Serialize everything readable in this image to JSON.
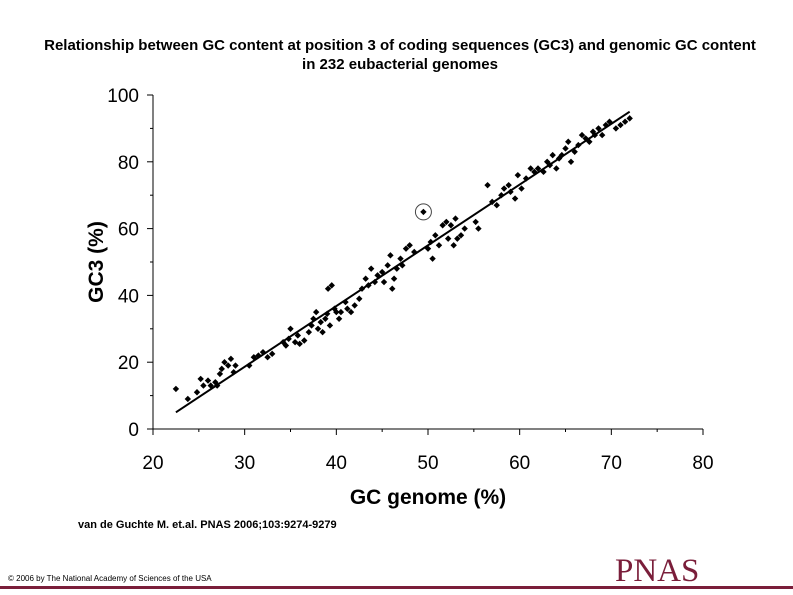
{
  "title": "Relationship between GC content at position 3 of coding sequences (GC3) and genomic GC content in 232 eubacterial genomes",
  "citation": "van de Guchte M. et.al. PNAS 2006;103:9274-9279",
  "copyright": "© 2006 by The National Academy of Sciences of the USA",
  "logo_text": "PNAS",
  "colors": {
    "brand": "#7a1e3a",
    "points": "#000000",
    "line": "#000000"
  },
  "chart_data": {
    "type": "scatter",
    "xlabel": "GC genome (%)",
    "ylabel": "GC3 (%)",
    "xlim": [
      20,
      80
    ],
    "ylim": [
      0,
      100
    ],
    "xticks": [
      20,
      30,
      40,
      50,
      60,
      70,
      80
    ],
    "yticks": [
      0,
      20,
      40,
      60,
      80,
      100
    ],
    "grid": false,
    "regression_line": {
      "x": [
        22.5,
        72
      ],
      "y": [
        5,
        95
      ]
    },
    "highlighted_point": {
      "x": 49.5,
      "y": 65
    },
    "points": [
      [
        22.5,
        12
      ],
      [
        23.8,
        9
      ],
      [
        24.8,
        11
      ],
      [
        25.2,
        15
      ],
      [
        25.5,
        13
      ],
      [
        26,
        14.5
      ],
      [
        26.3,
        13
      ],
      [
        26.8,
        14
      ],
      [
        27,
        13
      ],
      [
        27.3,
        16.5
      ],
      [
        27.5,
        18
      ],
      [
        27.8,
        20
      ],
      [
        28.2,
        19
      ],
      [
        28.5,
        21
      ],
      [
        28.8,
        17
      ],
      [
        29,
        19
      ],
      [
        30.5,
        19
      ],
      [
        31,
        21.5
      ],
      [
        31.5,
        22
      ],
      [
        32,
        23
      ],
      [
        32.5,
        21.5
      ],
      [
        33,
        22.5
      ],
      [
        34.2,
        26
      ],
      [
        34.5,
        25
      ],
      [
        34.8,
        27
      ],
      [
        35,
        30
      ],
      [
        35.5,
        26
      ],
      [
        35.8,
        28
      ],
      [
        36,
        25.5
      ],
      [
        36.5,
        26.5
      ],
      [
        37,
        29
      ],
      [
        37.3,
        31
      ],
      [
        37.5,
        33
      ],
      [
        37.8,
        35
      ],
      [
        38,
        30
      ],
      [
        38.3,
        32
      ],
      [
        38.5,
        29
      ],
      [
        38.8,
        33
      ],
      [
        39,
        34.5
      ],
      [
        39.1,
        42
      ],
      [
        39.3,
        31
      ],
      [
        39.5,
        43
      ],
      [
        39.8,
        36
      ],
      [
        40,
        35
      ],
      [
        40.3,
        33
      ],
      [
        40.5,
        35
      ],
      [
        41,
        38
      ],
      [
        41.2,
        36
      ],
      [
        41.6,
        35
      ],
      [
        42,
        37
      ],
      [
        42.5,
        39
      ],
      [
        42.8,
        42
      ],
      [
        43.2,
        45
      ],
      [
        43.5,
        43
      ],
      [
        43.8,
        48
      ],
      [
        44.2,
        44
      ],
      [
        44.5,
        46
      ],
      [
        45,
        47
      ],
      [
        45.2,
        44
      ],
      [
        45.6,
        49
      ],
      [
        45.9,
        52
      ],
      [
        46.1,
        42
      ],
      [
        46.3,
        45
      ],
      [
        46.6,
        48
      ],
      [
        47,
        51
      ],
      [
        47.2,
        49
      ],
      [
        47.6,
        54
      ],
      [
        48,
        55
      ],
      [
        48.5,
        53
      ],
      [
        49.5,
        65
      ],
      [
        50,
        54
      ],
      [
        50.3,
        56
      ],
      [
        50.5,
        51
      ],
      [
        50.8,
        58
      ],
      [
        51.2,
        55
      ],
      [
        51.6,
        61
      ],
      [
        52,
        62
      ],
      [
        52.2,
        57
      ],
      [
        52.5,
        61
      ],
      [
        52.8,
        55
      ],
      [
        53,
        63
      ],
      [
        53.2,
        57
      ],
      [
        53.6,
        58
      ],
      [
        54,
        60
      ],
      [
        55.2,
        62
      ],
      [
        55.5,
        60
      ],
      [
        56.5,
        73
      ],
      [
        57,
        68
      ],
      [
        57.5,
        67
      ],
      [
        58,
        70
      ],
      [
        58.3,
        72
      ],
      [
        58.8,
        73
      ],
      [
        59,
        71
      ],
      [
        59.5,
        69
      ],
      [
        59.8,
        76
      ],
      [
        60.2,
        72
      ],
      [
        60.7,
        75
      ],
      [
        61.2,
        78
      ],
      [
        61.6,
        77
      ],
      [
        62,
        78
      ],
      [
        62.6,
        77
      ],
      [
        63,
        80
      ],
      [
        63.3,
        79
      ],
      [
        63.6,
        82
      ],
      [
        64,
        78
      ],
      [
        64.3,
        81
      ],
      [
        64.6,
        82
      ],
      [
        65,
        84
      ],
      [
        65.3,
        86
      ],
      [
        65.6,
        80
      ],
      [
        66,
        83
      ],
      [
        66.4,
        85
      ],
      [
        66.8,
        88
      ],
      [
        67.2,
        87
      ],
      [
        67.6,
        86
      ],
      [
        68,
        89
      ],
      [
        68.2,
        88
      ],
      [
        68.6,
        90
      ],
      [
        69,
        88
      ],
      [
        69.4,
        91
      ],
      [
        69.8,
        92
      ],
      [
        70.5,
        90
      ],
      [
        71,
        91
      ],
      [
        71.5,
        92
      ],
      [
        72,
        93
      ]
    ]
  }
}
